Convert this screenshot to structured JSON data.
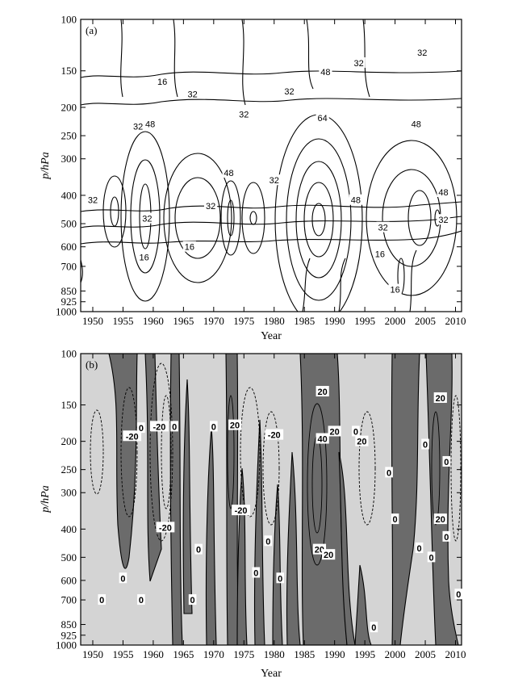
{
  "chart_data": [
    {
      "type": "contour",
      "panel": "(a)",
      "xlabel": "Year",
      "ylabel": "p/hPa",
      "xlim": [
        1948,
        2011
      ],
      "ylim": [
        1000,
        100
      ],
      "yscale": "log-pressure",
      "xticks": [
        1950,
        1955,
        1960,
        1965,
        1970,
        1975,
        1980,
        1985,
        1990,
        1995,
        2000,
        2005,
        2010
      ],
      "yticks": [
        100,
        150,
        200,
        250,
        300,
        400,
        500,
        600,
        700,
        850,
        925,
        1000
      ],
      "contour_levels": [
        16,
        32,
        48,
        64
      ],
      "filled": false,
      "labels": [
        {
          "text": "16",
          "x": 1961.5,
          "p": 163
        },
        {
          "text": "32",
          "x": 1966.5,
          "p": 180
        },
        {
          "text": "32",
          "x": 1957.5,
          "p": 232
        },
        {
          "text": "48",
          "x": 1959.5,
          "p": 228
        },
        {
          "text": "32",
          "x": 1975.0,
          "p": 211
        },
        {
          "text": "48",
          "x": 1972.5,
          "p": 335
        },
        {
          "text": "32",
          "x": 1980.0,
          "p": 355
        },
        {
          "text": "32",
          "x": 1982.5,
          "p": 176
        },
        {
          "text": "48",
          "x": 1988.5,
          "p": 151
        },
        {
          "text": "64",
          "x": 1988.0,
          "p": 217
        },
        {
          "text": "32",
          "x": 1994.0,
          "p": 141
        },
        {
          "text": "32",
          "x": 2004.5,
          "p": 130
        },
        {
          "text": "48",
          "x": 2003.5,
          "p": 228
        },
        {
          "text": "48",
          "x": 1993.5,
          "p": 415
        },
        {
          "text": "48",
          "x": 2008.0,
          "p": 390
        },
        {
          "text": "32",
          "x": 1950.0,
          "p": 415
        },
        {
          "text": "32",
          "x": 1969.5,
          "p": 435
        },
        {
          "text": "32",
          "x": 1959.0,
          "p": 480
        },
        {
          "text": "32",
          "x": 1998.0,
          "p": 515
        },
        {
          "text": "32",
          "x": 2008.0,
          "p": 485
        },
        {
          "text": "16",
          "x": 1966.0,
          "p": 600
        },
        {
          "text": "16",
          "x": 1958.5,
          "p": 650
        },
        {
          "text": "16",
          "x": 1997.5,
          "p": 635
        },
        {
          "text": "16",
          "x": 2000.0,
          "p": 840
        }
      ]
    },
    {
      "type": "contour",
      "panel": "(b)",
      "xlabel": "Year",
      "ylabel": "p/hPa",
      "xlim": [
        1948,
        2011
      ],
      "ylim": [
        1000,
        100
      ],
      "yscale": "log-pressure",
      "xticks": [
        1950,
        1955,
        1960,
        1965,
        1970,
        1975,
        1980,
        1985,
        1990,
        1995,
        2000,
        2005,
        2010
      ],
      "yticks": [
        100,
        150,
        200,
        250,
        300,
        400,
        500,
        600,
        700,
        850,
        925,
        1000
      ],
      "contour_levels": [
        -20,
        0,
        20,
        40
      ],
      "filled": true,
      "fill_colors": {
        "positive": "#6b6b6b",
        "negative": "#d4d4d4"
      },
      "labels": [
        {
          "text": "-20",
          "x": 1961.0,
          "p": 178
        },
        {
          "text": "-20",
          "x": 1956.5,
          "p": 192
        },
        {
          "text": "-20",
          "x": 1980.0,
          "p": 190
        },
        {
          "text": "-20",
          "x": 1974.5,
          "p": 345
        },
        {
          "text": "-20",
          "x": 1962.0,
          "p": 395
        },
        {
          "text": "0",
          "x": 1958.0,
          "p": 180
        },
        {
          "text": "0",
          "x": 1963.5,
          "p": 178
        },
        {
          "text": "0",
          "x": 1970.0,
          "p": 178
        },
        {
          "text": "20",
          "x": 1973.5,
          "p": 176
        },
        {
          "text": "20",
          "x": 1988.0,
          "p": 135
        },
        {
          "text": "40",
          "x": 1988.0,
          "p": 196
        },
        {
          "text": "20",
          "x": 1990.0,
          "p": 185
        },
        {
          "text": "0",
          "x": 1993.5,
          "p": 185
        },
        {
          "text": "20",
          "x": 1994.5,
          "p": 200
        },
        {
          "text": "0",
          "x": 1999.0,
          "p": 256
        },
        {
          "text": "0",
          "x": 2005.0,
          "p": 205
        },
        {
          "text": "20",
          "x": 2007.5,
          "p": 142
        },
        {
          "text": "0",
          "x": 2008.5,
          "p": 235
        },
        {
          "text": "0",
          "x": 2000.0,
          "p": 370
        },
        {
          "text": "20",
          "x": 2007.5,
          "p": 370
        },
        {
          "text": "0",
          "x": 2008.5,
          "p": 425
        },
        {
          "text": "0",
          "x": 2004.0,
          "p": 465
        },
        {
          "text": "0",
          "x": 2006.0,
          "p": 500
        },
        {
          "text": "0",
          "x": 2010.5,
          "p": 670
        },
        {
          "text": "20",
          "x": 1987.5,
          "p": 470
        },
        {
          "text": "20",
          "x": 1989.0,
          "p": 490
        },
        {
          "text": "0",
          "x": 1967.5,
          "p": 470
        },
        {
          "text": "0",
          "x": 1979.0,
          "p": 440
        },
        {
          "text": "0",
          "x": 1977.0,
          "p": 565
        },
        {
          "text": "0",
          "x": 1981.0,
          "p": 590
        },
        {
          "text": "0",
          "x": 1955.0,
          "p": 590
        },
        {
          "text": "0",
          "x": 1951.5,
          "p": 700
        },
        {
          "text": "0",
          "x": 1958.0,
          "p": 700
        },
        {
          "text": "0",
          "x": 1966.5,
          "p": 700
        },
        {
          "text": "0",
          "x": 1996.5,
          "p": 870
        }
      ]
    }
  ]
}
